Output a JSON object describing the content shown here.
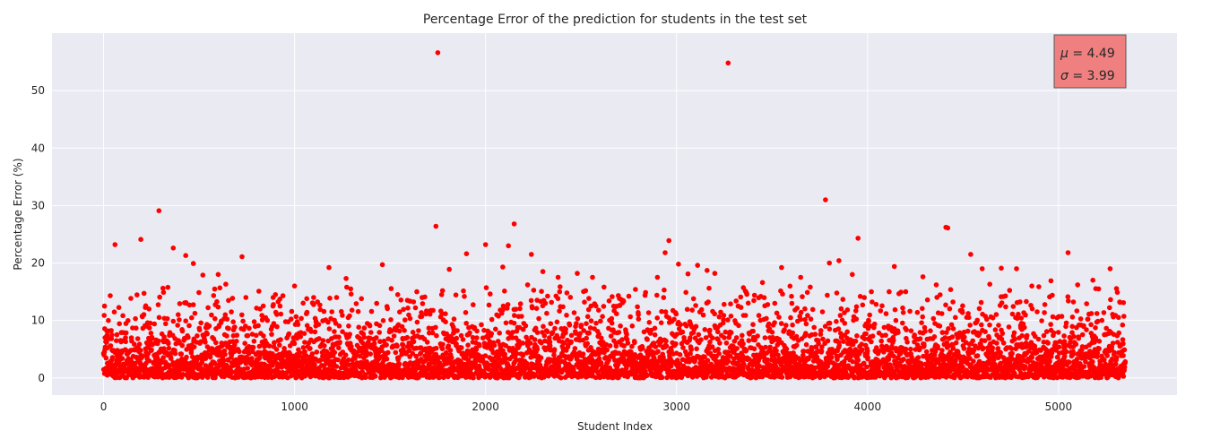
{
  "chart_data": {
    "type": "scatter",
    "title": "Percentage Error of the prediction for students in the test set",
    "xlabel": "Student Index",
    "ylabel": "Percentage Error (%)",
    "xlim": [
      -270,
      5620
    ],
    "ylim": [
      -3,
      60
    ],
    "xticks": [
      0,
      1000,
      2000,
      3000,
      4000,
      5000
    ],
    "yticks": [
      0,
      10,
      20,
      30,
      40,
      50
    ],
    "grid": true,
    "point_color": "#ff0000",
    "background_color": "#eaeaf2",
    "n_points": 5350,
    "annotation": {
      "mu_symbol": "μ",
      "mu_text": " = 4.49",
      "sigma_symbol": "σ",
      "sigma_text": " = 3.99",
      "box_color": "#f08080",
      "position": "top-right"
    },
    "series": [
      {
        "x": [
          5,
          60,
          195,
          290,
          365,
          430,
          470,
          520,
          600,
          640,
          725,
          745,
          820,
          900,
          1000,
          1100,
          1180,
          1220,
          1270,
          1350,
          1460,
          1540,
          1640,
          1740,
          1750,
          1770,
          1810,
          1900,
          2000,
          2090,
          2120,
          2150,
          2220,
          2240,
          2300,
          2380,
          2480,
          2560,
          2620,
          2700,
          2800,
          2900,
          2940,
          2960,
          3010,
          3060,
          3110,
          3160,
          3170,
          3200,
          3270,
          3350,
          3450,
          3550,
          3650,
          3700,
          3780,
          3800,
          3850,
          3920,
          3950,
          4020,
          4140,
          4200,
          4290,
          4360,
          4410,
          4420,
          4540,
          4600,
          4640,
          4700,
          4780,
          4860,
          4960,
          5050,
          5100,
          5180,
          5210,
          5270,
          5320,
          5340
        ],
        "y": [
          12.5,
          23.2,
          24.1,
          29.1,
          22.6,
          21.3,
          19.9,
          17.9,
          18.0,
          16.3,
          21.1,
          14.0,
          12.0,
          14.5,
          16.0,
          14.0,
          19.2,
          14.0,
          17.3,
          13.8,
          19.7,
          14.5,
          15.0,
          26.4,
          56.6,
          14.5,
          18.9,
          21.6,
          23.2,
          19.3,
          23.0,
          26.8,
          16.2,
          21.5,
          18.5,
          17.5,
          18.2,
          17.5,
          15.8,
          12.6,
          11.0,
          17.5,
          21.8,
          23.9,
          19.8,
          18.1,
          19.6,
          18.7,
          15.6,
          18.2,
          54.8,
          15.7,
          16.6,
          19.2,
          17.5,
          15.8,
          31.0,
          20.0,
          20.4,
          18.0,
          24.3,
          15.0,
          19.4,
          15.0,
          17.6,
          16.2,
          26.2,
          26.1,
          21.5,
          19.0,
          16.3,
          19.1,
          19.0,
          16.0,
          16.9,
          21.8,
          16.2,
          17.0,
          15.5,
          19.0,
          13.2,
          13.1
        ]
      }
    ]
  }
}
